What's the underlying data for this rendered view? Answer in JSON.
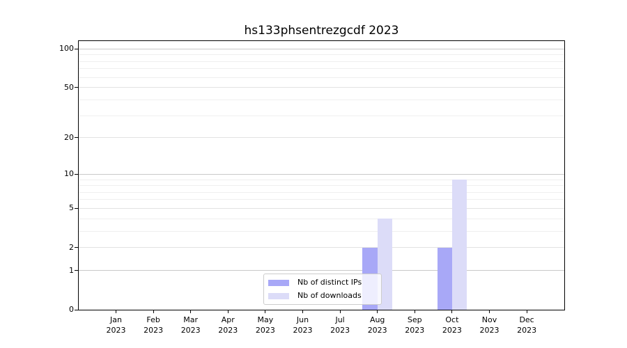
{
  "chart_data": {
    "type": "bar",
    "title": "hs133phsentrezgcdf 2023",
    "x_tick_months": [
      "Jan",
      "Feb",
      "Mar",
      "Apr",
      "May",
      "Jun",
      "Jul",
      "Aug",
      "Sep",
      "Oct",
      "Nov",
      "Dec"
    ],
    "x_tick_year": "2023",
    "series": [
      {
        "name": "Nb of distinct IPs",
        "color": "#a8a8f7",
        "values": [
          0,
          0,
          0,
          0,
          0,
          0,
          0,
          2,
          0,
          2,
          0,
          0
        ]
      },
      {
        "name": "Nb of downloads",
        "color": "#dcdcf8",
        "values": [
          0,
          0,
          0,
          0,
          0,
          0,
          0,
          4,
          0,
          9,
          0,
          0
        ]
      }
    ],
    "yscale": "log10(1+v)",
    "ylim": [
      0,
      115
    ],
    "y_ticks": [
      100,
      50,
      20,
      10,
      5,
      2,
      1,
      0
    ],
    "y_decade_ticks": [
      1,
      10,
      100
    ],
    "y_minor_ticks": [
      3,
      4,
      6,
      7,
      8,
      9,
      30,
      40,
      60,
      70,
      80,
      90
    ],
    "grid": "horizontal",
    "legend_position": "lower center"
  },
  "colors": {
    "background": "#ffffff",
    "spine": "#000000",
    "grid_decade": "#c9c9c9",
    "grid_major": "#e2e2e2",
    "grid_minor": "#efefef",
    "legend_border": "#cccccc",
    "text": "#000000"
  }
}
